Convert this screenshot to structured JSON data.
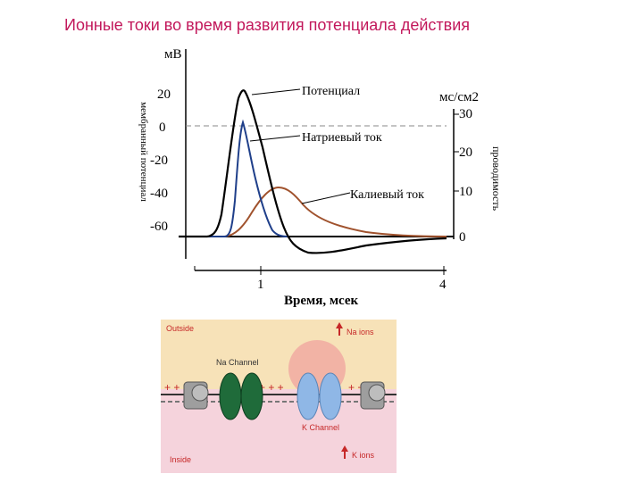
{
  "slide": {
    "title": "Ионные токи во время развития потенциала действия"
  },
  "graph": {
    "left_axis_unit": "мВ",
    "left_axis_title": "мембранный потенциал",
    "left_ticks": [
      "20",
      "0",
      "-20",
      "-40",
      "-60"
    ],
    "right_axis_unit": "мс/см2",
    "right_axis_title": "проводимость",
    "right_ticks": [
      "30",
      "20",
      "10",
      "0"
    ],
    "x_ticks": [
      "1",
      "4"
    ],
    "x_label": "Время, мсек",
    "labels": {
      "potential": "Потенциал",
      "sodium": "Натриевый ток",
      "potassium": "Калиевый ток"
    },
    "colors": {
      "potential": "#000000",
      "sodium": "#1f3f8a",
      "potassium": "#a0522d",
      "zero_line": "#888888"
    }
  },
  "channels": {
    "outside": "Outside",
    "inside": "Inside",
    "na_ions": "Na ions",
    "k_ions": "K ions",
    "na_channel": "Na Channel",
    "k_channel": "K Channel",
    "colors": {
      "outside_bg": "#f7e2b8",
      "inside_bg": "#f5d3dc",
      "label": "#c62828",
      "na_channel": "#1f6b3a",
      "k_channel": "#8fb7e6"
    }
  }
}
